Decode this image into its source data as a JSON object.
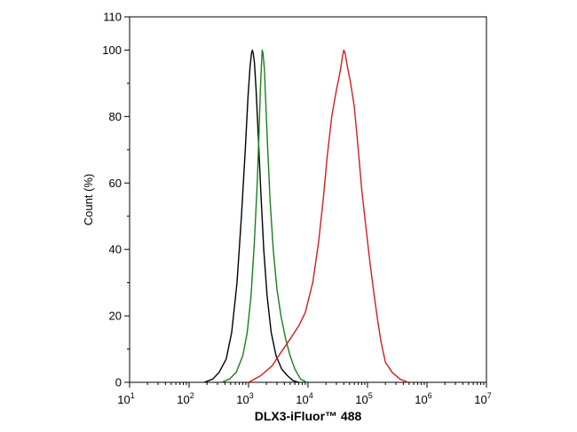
{
  "chart_data": {
    "type": "line",
    "title": "",
    "xlabel": "DLX3-iFluor™ 488",
    "ylabel": "Count  (%)",
    "xscale": "log",
    "xlim": [
      10,
      10000000
    ],
    "ylim": [
      0,
      110
    ],
    "x_ticks": [
      {
        "base": "10",
        "exp": "1"
      },
      {
        "base": "10",
        "exp": "2"
      },
      {
        "base": "10",
        "exp": "3"
      },
      {
        "base": "10",
        "exp": "4"
      },
      {
        "base": "10",
        "exp": "5"
      },
      {
        "base": "10",
        "exp": "6"
      },
      {
        "base": "10",
        "exp": "7"
      }
    ],
    "y_ticks": [
      "0",
      "20",
      "40",
      "60",
      "80",
      "100",
      "110"
    ],
    "grid": false,
    "legend": "none",
    "series": [
      {
        "color": "#000000",
        "x": [
          180,
          250,
          320,
          420,
          520,
          640,
          760,
          880,
          980,
          1060,
          1120,
          1160,
          1200,
          1260,
          1340,
          1450,
          1600,
          1800,
          2050,
          2400,
          2900,
          3600,
          4500,
          5600,
          7000
        ],
        "y": [
          0,
          1,
          3,
          7,
          15,
          30,
          50,
          70,
          86,
          95,
          99,
          100,
          99,
          96,
          88,
          75,
          58,
          40,
          26,
          15,
          8,
          4,
          2,
          0.5,
          0
        ]
      },
      {
        "color": "#1a7f1a",
        "x": [
          350,
          480,
          620,
          800,
          950,
          1100,
          1250,
          1400,
          1500,
          1580,
          1650,
          1700,
          1750,
          1850,
          1950,
          2100,
          2300,
          2600,
          3000,
          3500,
          4200,
          5000,
          6000,
          7500,
          9500
        ],
        "y": [
          0,
          1,
          3,
          8,
          15,
          26,
          42,
          60,
          75,
          88,
          96,
          100,
          99,
          94,
          84,
          70,
          55,
          40,
          28,
          20,
          13,
          8,
          4,
          1,
          0
        ]
      },
      {
        "color": "#cc1f1f",
        "x": [
          1000,
          1600,
          2500,
          3500,
          5000,
          7000,
          9000,
          12000,
          15000,
          18000,
          21000,
          25000,
          30000,
          35000,
          38000,
          40000,
          42000,
          46000,
          52000,
          60000,
          70000,
          80000,
          95000,
          110000,
          130000,
          150000,
          170000,
          200000,
          260000,
          350000,
          480000
        ],
        "y": [
          0,
          2,
          5,
          9,
          13,
          17,
          21,
          30,
          42,
          55,
          68,
          80,
          88,
          94,
          98,
          100,
          99,
          95,
          90,
          83,
          70,
          58,
          46,
          36,
          26,
          18,
          12,
          6,
          3,
          1,
          0
        ]
      }
    ]
  }
}
